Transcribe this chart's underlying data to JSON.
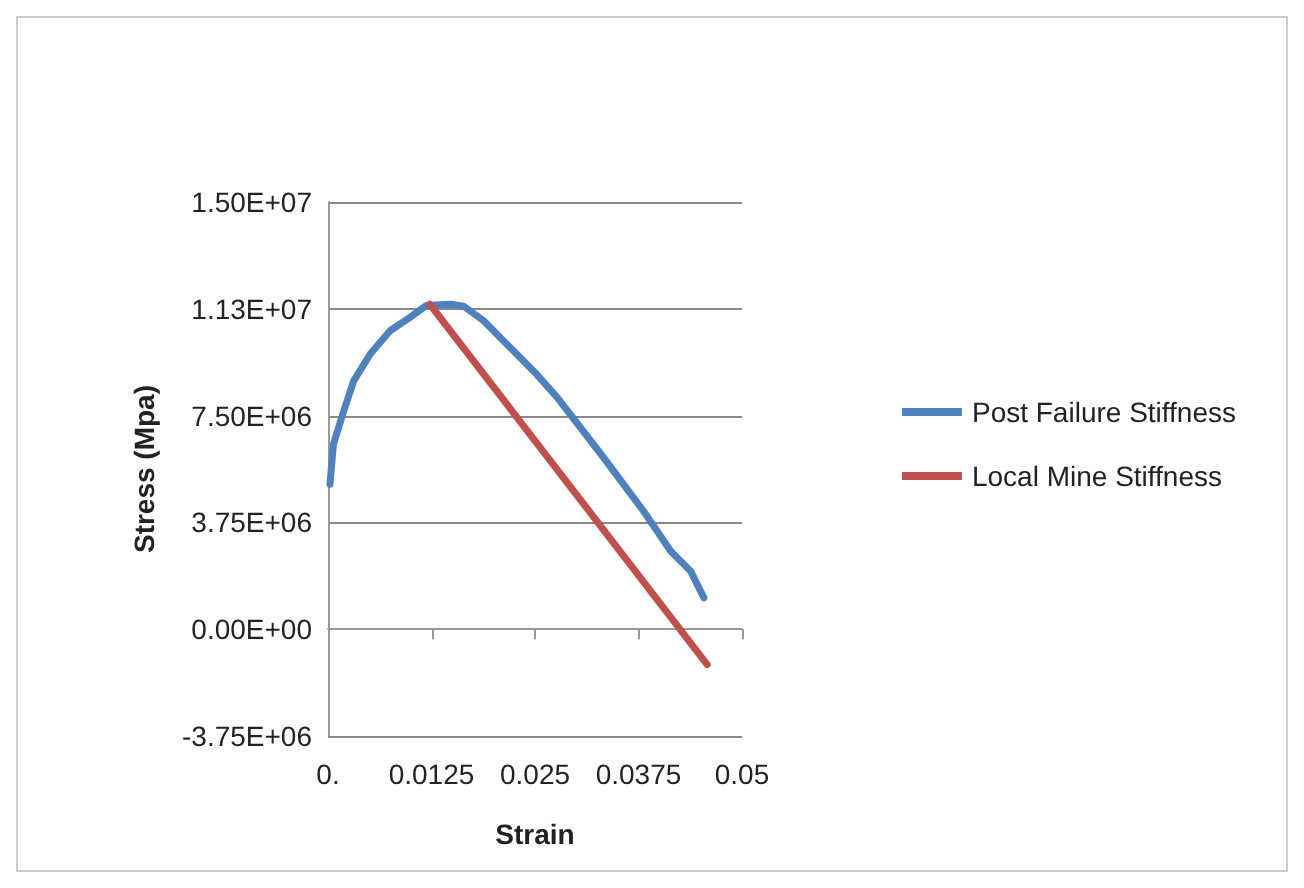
{
  "chart_data": {
    "type": "line",
    "xlabel": "Strain",
    "ylabel": "Stress (Mpa)",
    "xlim": [
      0,
      0.05
    ],
    "xticks": [
      {
        "value": 0,
        "label": "0."
      },
      0.0125,
      0.025,
      0.0375,
      0.05
    ],
    "ylim": [
      -3750000,
      15000000
    ],
    "yticks": [
      {
        "value": -3750000,
        "label": "-3.75E+06"
      },
      {
        "value": 0,
        "label": "0.00E+00"
      },
      {
        "value": 3750000,
        "label": "3.75E+06"
      },
      {
        "value": 7500000,
        "label": "7.50E+06"
      },
      {
        "value": 11250000,
        "label": "1.13E+07"
      },
      {
        "value": 15000000,
        "label": "1.50E+07"
      }
    ],
    "grid": "y",
    "legend": "right",
    "marker": "none",
    "line_style": "solid",
    "series": [
      {
        "name": "Post Failure Stiffness",
        "color": "#4f81bd",
        "x": [
          0.00024,
          0.00065,
          0.0019,
          0.0031,
          0.0051,
          0.0075,
          0.0099,
          0.0119,
          0.0148,
          0.0164,
          0.0188,
          0.022,
          0.0252,
          0.0277,
          0.0333,
          0.0381,
          0.0414,
          0.0438,
          0.0454
        ],
        "values": [
          5090000,
          6490000,
          7660000,
          8720000,
          9660000,
          10480000,
          10950000,
          11370000,
          11410000,
          11340000,
          10830000,
          9890000,
          8950000,
          8130000,
          6020000,
          4150000,
          2740000,
          2040000,
          1100000
        ]
      },
      {
        "name": "Local Mine Stiffness",
        "color": "#c0504d",
        "x": [
          0.0123,
          0.0458
        ],
        "values": [
          11410000,
          -1240000
        ]
      }
    ]
  }
}
